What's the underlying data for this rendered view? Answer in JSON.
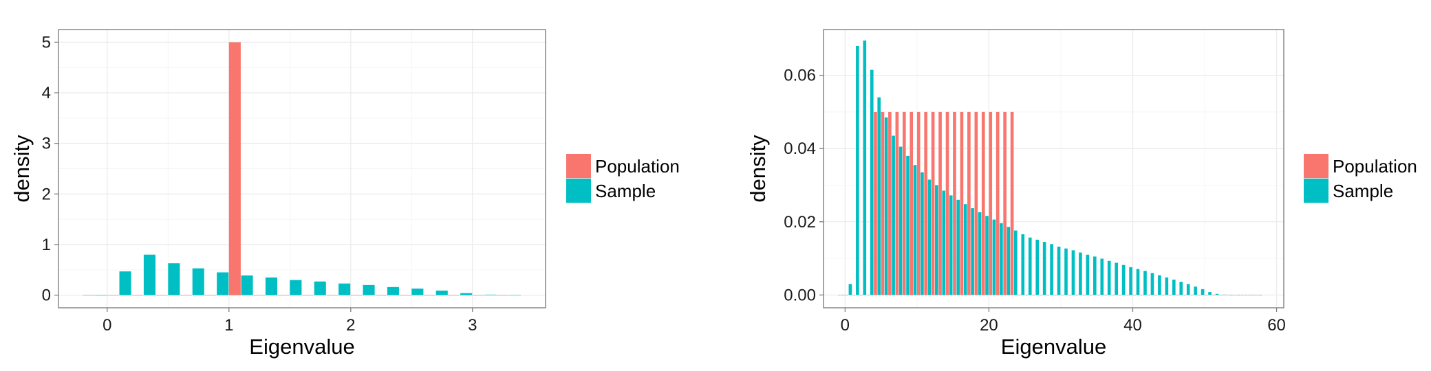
{
  "chart_data": [
    {
      "type": "bar",
      "xlabel": "Eigenvalue",
      "ylabel": "density",
      "xlim": [
        -0.4,
        3.6
      ],
      "ylim": [
        -0.25,
        5.25
      ],
      "xticks": [
        0,
        1,
        2,
        3
      ],
      "yticks": [
        0,
        1,
        2,
        3,
        4,
        5
      ],
      "grid": true,
      "legend_position": "right",
      "bin_width": 0.2,
      "colors": {
        "Population": "#F8766D",
        "Sample": "#00BFC4"
      },
      "series": [
        {
          "name": "Population",
          "x": [
            -0.1,
            0.1,
            0.3,
            0.5,
            0.7,
            0.9,
            1.1,
            1.3,
            1.5,
            1.7,
            1.9,
            2.1,
            2.3,
            2.5,
            2.7,
            2.9,
            3.1,
            3.3
          ],
          "values": [
            0,
            0,
            0,
            0,
            0,
            0,
            5.0,
            0,
            0,
            0,
            0,
            0,
            0,
            0,
            0,
            0,
            0,
            0
          ]
        },
        {
          "name": "Sample",
          "x": [
            -0.1,
            0.1,
            0.3,
            0.5,
            0.7,
            0.9,
            1.1,
            1.3,
            1.5,
            1.7,
            1.9,
            2.1,
            2.3,
            2.5,
            2.7,
            2.9,
            3.1,
            3.3
          ],
          "values": [
            0,
            0.47,
            0.8,
            0.63,
            0.53,
            0.45,
            0.39,
            0.35,
            0.3,
            0.27,
            0.23,
            0.2,
            0.16,
            0.13,
            0.09,
            0.04,
            0.01,
            0.005
          ]
        }
      ]
    },
    {
      "type": "bar",
      "xlabel": "Eigenvalue",
      "ylabel": "density",
      "xlim": [
        -3,
        61
      ],
      "ylim": [
        -0.0035,
        0.0725
      ],
      "xticks": [
        0,
        20,
        40,
        60
      ],
      "yticks": [
        0.0,
        0.02,
        0.04,
        0.06
      ],
      "ytick_labels": [
        "0.00",
        "0.02",
        "0.04",
        "0.06"
      ],
      "grid": true,
      "legend_position": "right",
      "bin_width": 1,
      "colors": {
        "Population": "#F8766D",
        "Sample": "#00BFC4"
      },
      "series": [
        {
          "name": "Population",
          "x": [
            -0.5,
            0.5,
            1.5,
            2.5,
            3.5,
            4.5,
            5.5,
            6.5,
            7.5,
            8.5,
            9.5,
            10.5,
            11.5,
            12.5,
            13.5,
            14.5,
            15.5,
            16.5,
            17.5,
            18.5,
            19.5,
            20.5,
            21.5,
            22.5,
            23.5,
            24.5,
            25.5,
            26.5,
            27.5,
            28.5,
            29.5,
            30.5,
            31.5,
            32.5,
            33.5,
            34.5,
            35.5,
            36.5,
            37.5,
            38.5,
            39.5,
            40.5,
            41.5,
            42.5,
            43.5,
            44.5,
            45.5,
            46.5,
            47.5,
            48.5,
            49.5,
            50.5,
            51.5,
            52.5,
            53.5,
            54.5,
            55.5,
            56.5,
            57.5
          ],
          "values": [
            0,
            0,
            0,
            0,
            0,
            0.05,
            0.05,
            0.05,
            0.05,
            0.05,
            0.05,
            0.05,
            0.05,
            0.05,
            0.05,
            0.05,
            0.05,
            0.05,
            0.05,
            0.05,
            0.05,
            0.05,
            0.05,
            0.05,
            0.05,
            0,
            0,
            0,
            0,
            0,
            0,
            0,
            0,
            0,
            0,
            0,
            0,
            0,
            0,
            0,
            0,
            0,
            0,
            0,
            0,
            0,
            0,
            0,
            0,
            0,
            0,
            0,
            0,
            0,
            0,
            0,
            0,
            0,
            0
          ]
        },
        {
          "name": "Sample",
          "x": [
            -0.5,
            0.5,
            1.5,
            2.5,
            3.5,
            4.5,
            5.5,
            6.5,
            7.5,
            8.5,
            9.5,
            10.5,
            11.5,
            12.5,
            13.5,
            14.5,
            15.5,
            16.5,
            17.5,
            18.5,
            19.5,
            20.5,
            21.5,
            22.5,
            23.5,
            24.5,
            25.5,
            26.5,
            27.5,
            28.5,
            29.5,
            30.5,
            31.5,
            32.5,
            33.5,
            34.5,
            35.5,
            36.5,
            37.5,
            38.5,
            39.5,
            40.5,
            41.5,
            42.5,
            43.5,
            44.5,
            45.5,
            46.5,
            47.5,
            48.5,
            49.5,
            50.5,
            51.5,
            52.5,
            53.5,
            54.5,
            55.5,
            56.5,
            57.5
          ],
          "values": [
            0,
            0.003,
            0.068,
            0.0695,
            0.0615,
            0.054,
            0.0485,
            0.0435,
            0.0405,
            0.038,
            0.0355,
            0.0335,
            0.0315,
            0.03,
            0.0285,
            0.0272,
            0.026,
            0.0248,
            0.0237,
            0.0226,
            0.0216,
            0.0206,
            0.0196,
            0.0186,
            0.0176,
            0.0166,
            0.0157,
            0.0151,
            0.0145,
            0.0139,
            0.0132,
            0.0127,
            0.0122,
            0.0116,
            0.011,
            0.0105,
            0.0099,
            0.0093,
            0.0088,
            0.0082,
            0.0076,
            0.0071,
            0.0066,
            0.006,
            0.0054,
            0.0048,
            0.0042,
            0.0036,
            0.003,
            0.0023,
            0.0016,
            0.0008,
            0.0003,
            0.0001,
            0,
            0,
            0,
            0,
            0
          ]
        }
      ]
    }
  ]
}
